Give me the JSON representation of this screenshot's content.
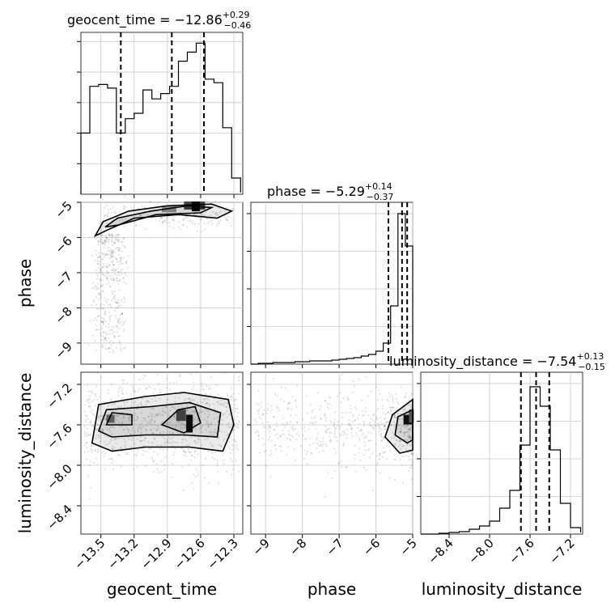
{
  "chart_data": {
    "type": "corner",
    "params": [
      {
        "key": "geocent_time",
        "label": "geocent_time",
        "xlim": [
          -13.68,
          -12.22
        ],
        "ticks": [
          -13.5,
          -13.2,
          -12.9,
          -12.6,
          -12.3
        ],
        "tick_labels": [
          "−13.5",
          "−13.2",
          "−12.9",
          "−12.6",
          "−12.3"
        ],
        "title_main": "geocent_time = −12.86",
        "title_sup": "+0.29",
        "title_sub": "−0.46",
        "quantiles": [
          -13.32,
          -12.86,
          -12.57
        ]
      },
      {
        "key": "phase",
        "label": "phase",
        "xlim": [
          -9.4,
          -5.0
        ],
        "ticks": [
          -9,
          -8,
          -7,
          -6,
          -5
        ],
        "tick_labels": [
          "−9",
          "−8",
          "−7",
          "−6",
          "−5"
        ],
        "title_main": "phase = −5.29",
        "title_sup": "+0.14",
        "title_sub": "−0.37",
        "quantiles": [
          -5.66,
          -5.29,
          -5.15
        ]
      },
      {
        "key": "luminosity_distance",
        "label": "luminosity_distance",
        "xlim": [
          -8.68,
          -7.08
        ],
        "ticks": [
          -8.4,
          -8.0,
          -7.6,
          -7.2
        ],
        "tick_labels": [
          "−8.4",
          "−8.0",
          "−7.6",
          "−7.2"
        ],
        "title_main": "luminosity_distance = −7.54",
        "title_sup": "+0.13",
        "title_sub": "−0.15",
        "quantiles": [
          -7.69,
          -7.54,
          -7.41
        ]
      }
    ],
    "phase_y": {
      "ylim": [
        -9.6,
        -5.0
      ],
      "ticks": [
        -9,
        -8,
        -7,
        -6,
        -5
      ],
      "tick_labels": [
        "−9",
        "−8",
        "−7",
        "−6",
        "−5"
      ]
    },
    "lumi_y": {
      "ylim": [
        -8.68,
        -7.08
      ],
      "ticks": [
        -8.4,
        -8.0,
        -7.6,
        -7.2
      ],
      "tick_labels": [
        "−8.4",
        "−8.0",
        "−7.6",
        "−7.2"
      ]
    },
    "hist_geocent": {
      "edges": [
        -13.68,
        -13.6,
        -13.52,
        -13.44,
        -13.36,
        -13.28,
        -13.2,
        -13.12,
        -13.04,
        -12.96,
        -12.88,
        -12.8,
        -12.72,
        -12.64,
        -12.56,
        -12.48,
        -12.4,
        -12.32,
        -12.24
      ],
      "counts": [
        0.34,
        0.6,
        0.61,
        0.59,
        0.34,
        0.42,
        0.45,
        0.58,
        0.53,
        0.56,
        0.6,
        0.74,
        0.79,
        0.84,
        0.64,
        0.62,
        0.37,
        0.09,
        0.01
      ],
      "ymax": 0.9
    },
    "hist_phase": {
      "edges": [
        -9.4,
        -9.2,
        -9.0,
        -8.8,
        -8.6,
        -8.4,
        -8.2,
        -8.0,
        -7.8,
        -7.6,
        -7.4,
        -7.2,
        -7.0,
        -6.8,
        -6.6,
        -6.4,
        -6.2,
        -6.0,
        -5.8,
        -5.6,
        -5.4,
        -5.2,
        -5.1,
        -5.0
      ],
      "counts": [
        0.0,
        0.005,
        0.005,
        0.01,
        0.01,
        0.01,
        0.015,
        0.015,
        0.02,
        0.02,
        0.02,
        0.025,
        0.03,
        0.035,
        0.04,
        0.05,
        0.06,
        0.08,
        0.13,
        0.36,
        0.93,
        0.73,
        0.73
      ],
      "ymax": 1.0
    },
    "hist_lumi": {
      "edges": [
        -8.68,
        -8.6,
        -8.5,
        -8.4,
        -8.3,
        -8.2,
        -8.1,
        -8.0,
        -7.9,
        -7.8,
        -7.7,
        -7.6,
        -7.5,
        -7.4,
        -7.3,
        -7.2,
        -7.1
      ],
      "counts": [
        0.0,
        0.0,
        0.005,
        0.01,
        0.015,
        0.03,
        0.05,
        0.08,
        0.16,
        0.27,
        0.55,
        0.91,
        0.79,
        0.52,
        0.19,
        0.04,
        0.01
      ],
      "ymax": 1.0
    }
  }
}
